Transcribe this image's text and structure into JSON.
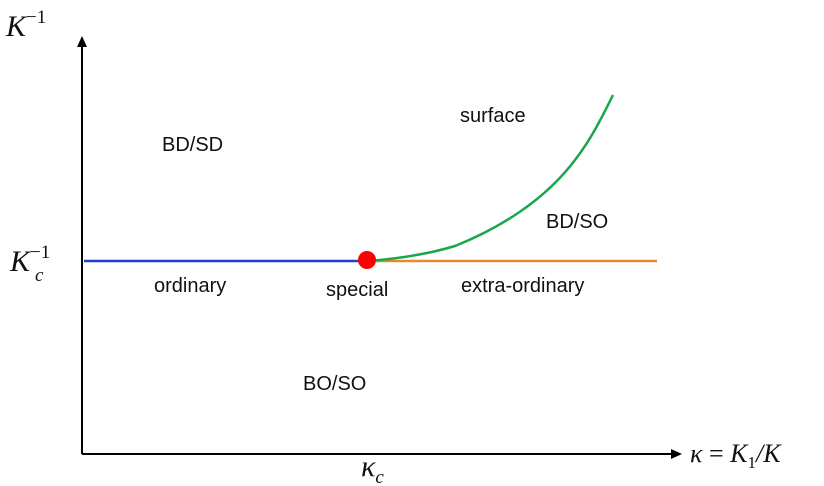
{
  "axes": {
    "y_label": {
      "base": "K",
      "sup": "−1"
    },
    "x_label": {
      "lhs": "κ",
      "eq": " = ",
      "rhs_base": "K",
      "rhs_sub": "1",
      "rhs_tail": "/K"
    },
    "y_tick": {
      "base": "K",
      "sub": "c",
      "sup": "−1"
    },
    "x_tick": {
      "base": "κ",
      "sub": "c"
    }
  },
  "region_labels": {
    "bd_sd": "BD/SD",
    "surface": "surface",
    "bd_so": "BD/SO",
    "ordinary": "ordinary",
    "special": "special",
    "extra_ordinary": "extra-ordinary",
    "bo_so": "BO/SO"
  },
  "colors": {
    "axis": "#000000",
    "ordinary_line": "#1f3fd1",
    "extra_ordinary_line": "#e8892b",
    "surface_line": "#1aa64a",
    "special_point": "#ff0000"
  }
}
